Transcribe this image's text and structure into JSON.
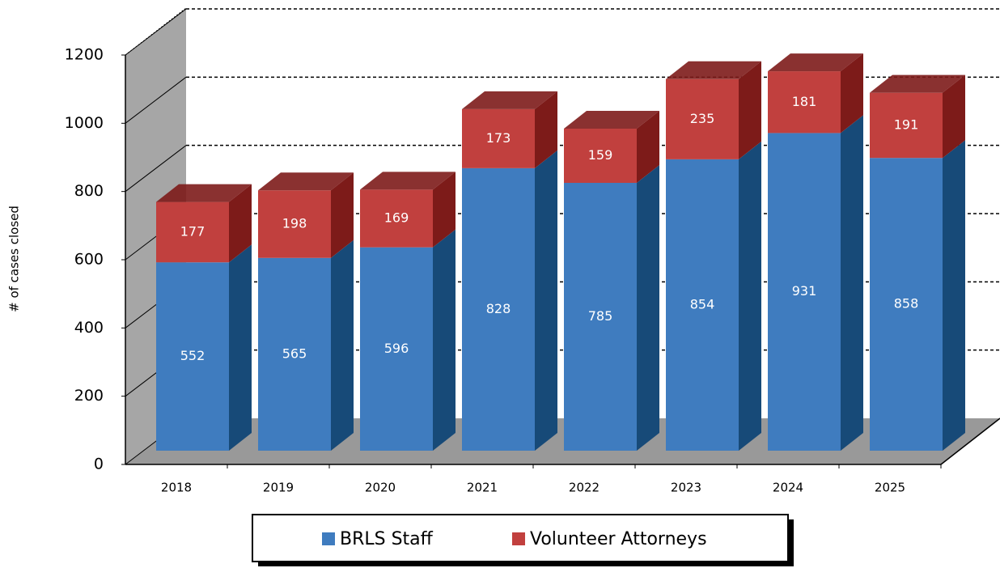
{
  "chart_data": {
    "type": "bar3d_stacked",
    "y_label": "# of cases closed",
    "categories": [
      "2018",
      "2019",
      "2020",
      "2021",
      "2022",
      "2023",
      "2024",
      "2025"
    ],
    "series": [
      {
        "name": "BRLS Staff",
        "color": "#3f7cbf",
        "side_color": "#174a78",
        "values": [
          552,
          565,
          596,
          828,
          785,
          854,
          931,
          858
        ]
      },
      {
        "name": "Volunteer Attorneys",
        "color": "#c1403e",
        "side_color": "#7d1b19",
        "values": [
          177,
          198,
          169,
          173,
          159,
          235,
          181,
          191
        ]
      }
    ],
    "ylim": [
      0,
      1200
    ],
    "yticks": [
      0,
      200,
      400,
      600,
      800,
      1000,
      1200
    ],
    "grid": true
  }
}
